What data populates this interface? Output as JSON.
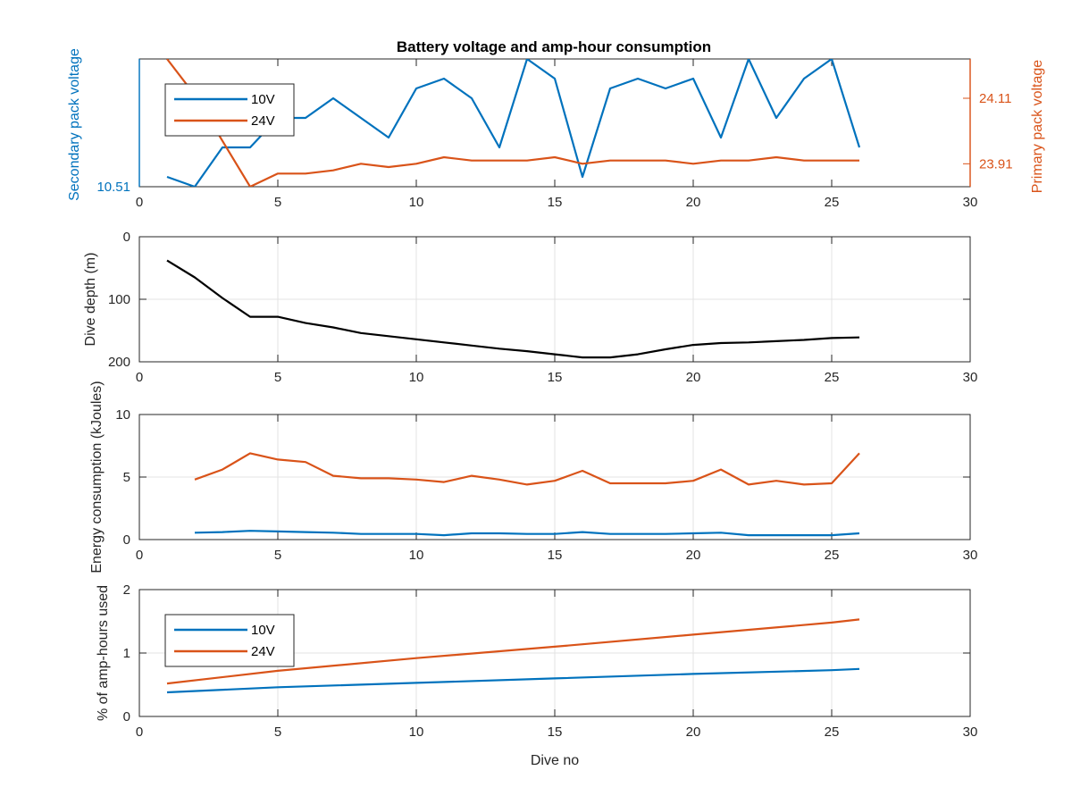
{
  "figure": {
    "title": "Battery voltage and amp-hour consumption",
    "colors": {
      "blue": "#0072BD",
      "orange": "#D95319",
      "black": "#000000",
      "axis": "#262626",
      "grid": "#e3e3e3"
    }
  },
  "chart_data": [
    {
      "type": "line",
      "id": "voltage",
      "title": "Battery voltage and amp-hour consumption",
      "xlabel": "",
      "ylabel_left": "Secondary pack voltage",
      "ylabel_right": "Primary pack voltage",
      "xlim": [
        0,
        30
      ],
      "xticks": [
        0,
        5,
        10,
        15,
        20,
        25,
        30
      ],
      "grid": false,
      "legend": {
        "placement": "top-left",
        "entries": [
          "10V",
          "24V"
        ]
      },
      "left_axis": {
        "ylim": [
          10.51,
          10.64
        ],
        "ticks": [
          10.51
        ],
        "tick_labels": [
          "10.51"
        ],
        "color": "#0072BD"
      },
      "right_axis": {
        "ylim": [
          23.84,
          24.23
        ],
        "ticks": [
          24.11,
          23.91
        ],
        "tick_labels": [
          "24.11",
          "23.91"
        ],
        "color": "#D95319"
      },
      "series": [
        {
          "name": "10V",
          "axis": "left",
          "color": "#0072BD",
          "x": [
            1,
            2,
            3,
            4,
            5,
            6,
            7,
            8,
            9,
            10,
            11,
            12,
            13,
            14,
            15,
            16,
            17,
            18,
            19,
            20,
            21,
            22,
            23,
            24,
            25,
            26
          ],
          "y": [
            10.52,
            10.51,
            10.55,
            10.55,
            10.58,
            10.58,
            10.6,
            10.58,
            10.56,
            10.61,
            10.62,
            10.6,
            10.55,
            10.64,
            10.62,
            10.52,
            10.61,
            10.62,
            10.61,
            10.62,
            10.56,
            10.64,
            10.58,
            10.62,
            10.64,
            10.55
          ]
        },
        {
          "name": "24V",
          "axis": "right",
          "color": "#D95319",
          "x": [
            1,
            2,
            3,
            4,
            5,
            6,
            7,
            8,
            9,
            10,
            11,
            12,
            13,
            14,
            15,
            16,
            17,
            18,
            19,
            20,
            21,
            22,
            23,
            24,
            25,
            26
          ],
          "y": [
            24.23,
            24.12,
            23.98,
            23.84,
            23.88,
            23.88,
            23.89,
            23.91,
            23.9,
            23.91,
            23.93,
            23.92,
            23.92,
            23.92,
            23.93,
            23.91,
            23.92,
            23.92,
            23.92,
            23.91,
            23.92,
            23.92,
            23.93,
            23.92,
            23.92,
            23.92
          ]
        }
      ]
    },
    {
      "type": "line",
      "id": "depth",
      "title": "",
      "xlabel": "",
      "ylabel": "Dive depth (m)",
      "xlim": [
        0,
        30
      ],
      "xticks": [
        0,
        5,
        10,
        15,
        20,
        25,
        30
      ],
      "ylim": [
        0,
        200
      ],
      "y_reversed": true,
      "yticks": [
        0,
        100,
        200
      ],
      "grid": true,
      "series": [
        {
          "name": "",
          "color": "#000000",
          "x": [
            1,
            2,
            3,
            4,
            5,
            6,
            7,
            8,
            9,
            10,
            11,
            12,
            13,
            14,
            15,
            16,
            17,
            18,
            19,
            20,
            21,
            22,
            23,
            24,
            25,
            26
          ],
          "y": [
            38,
            65,
            98,
            128,
            128,
            138,
            145,
            154,
            159,
            164,
            169,
            174,
            179,
            183,
            188,
            193,
            193,
            188,
            180,
            173,
            170,
            169,
            167,
            165,
            162,
            161
          ]
        }
      ]
    },
    {
      "type": "line",
      "id": "energy",
      "title": "",
      "xlabel": "",
      "ylabel": "Energy consumption (kJoules)",
      "xlim": [
        0,
        30
      ],
      "xticks": [
        0,
        5,
        10,
        15,
        20,
        25,
        30
      ],
      "ylim": [
        0,
        10
      ],
      "yticks": [
        0,
        5,
        10
      ],
      "grid": true,
      "series": [
        {
          "name": "24V",
          "color": "#D95319",
          "x": [
            2,
            3,
            4,
            5,
            6,
            7,
            8,
            9,
            10,
            11,
            12,
            13,
            14,
            15,
            16,
            17,
            18,
            19,
            20,
            21,
            22,
            23,
            24,
            25,
            26
          ],
          "y": [
            4.8,
            5.6,
            6.9,
            6.4,
            6.2,
            5.1,
            4.9,
            4.9,
            4.8,
            4.6,
            5.1,
            4.8,
            4.4,
            4.7,
            5.5,
            4.5,
            4.5,
            4.5,
            4.7,
            5.6,
            4.4,
            4.7,
            4.4,
            4.5,
            6.9
          ]
        },
        {
          "name": "10V",
          "color": "#0072BD",
          "x": [
            2,
            3,
            4,
            5,
            6,
            7,
            8,
            9,
            10,
            11,
            12,
            13,
            14,
            15,
            16,
            17,
            18,
            19,
            20,
            21,
            22,
            23,
            24,
            25,
            26
          ],
          "y": [
            0.55,
            0.6,
            0.7,
            0.65,
            0.6,
            0.55,
            0.45,
            0.45,
            0.45,
            0.35,
            0.5,
            0.5,
            0.45,
            0.45,
            0.6,
            0.45,
            0.45,
            0.45,
            0.5,
            0.55,
            0.35,
            0.35,
            0.35,
            0.35,
            0.5
          ]
        }
      ]
    },
    {
      "type": "line",
      "id": "amphours",
      "title": "",
      "xlabel": "Dive no",
      "ylabel": "% of amp-hours used",
      "xlim": [
        0,
        30
      ],
      "xticks": [
        0,
        5,
        10,
        15,
        20,
        25,
        30
      ],
      "ylim": [
        0,
        2
      ],
      "yticks": [
        0,
        1,
        2
      ],
      "grid": true,
      "legend": {
        "placement": "top-left",
        "entries": [
          "10V",
          "24V"
        ]
      },
      "series": [
        {
          "name": "10V",
          "color": "#0072BD",
          "x": [
            1,
            5,
            10,
            15,
            20,
            25,
            26
          ],
          "y": [
            0.38,
            0.46,
            0.53,
            0.6,
            0.67,
            0.73,
            0.75
          ]
        },
        {
          "name": "24V",
          "color": "#D95319",
          "x": [
            1,
            5,
            10,
            15,
            20,
            25,
            26
          ],
          "y": [
            0.52,
            0.72,
            0.92,
            1.1,
            1.29,
            1.48,
            1.53
          ]
        }
      ]
    }
  ]
}
